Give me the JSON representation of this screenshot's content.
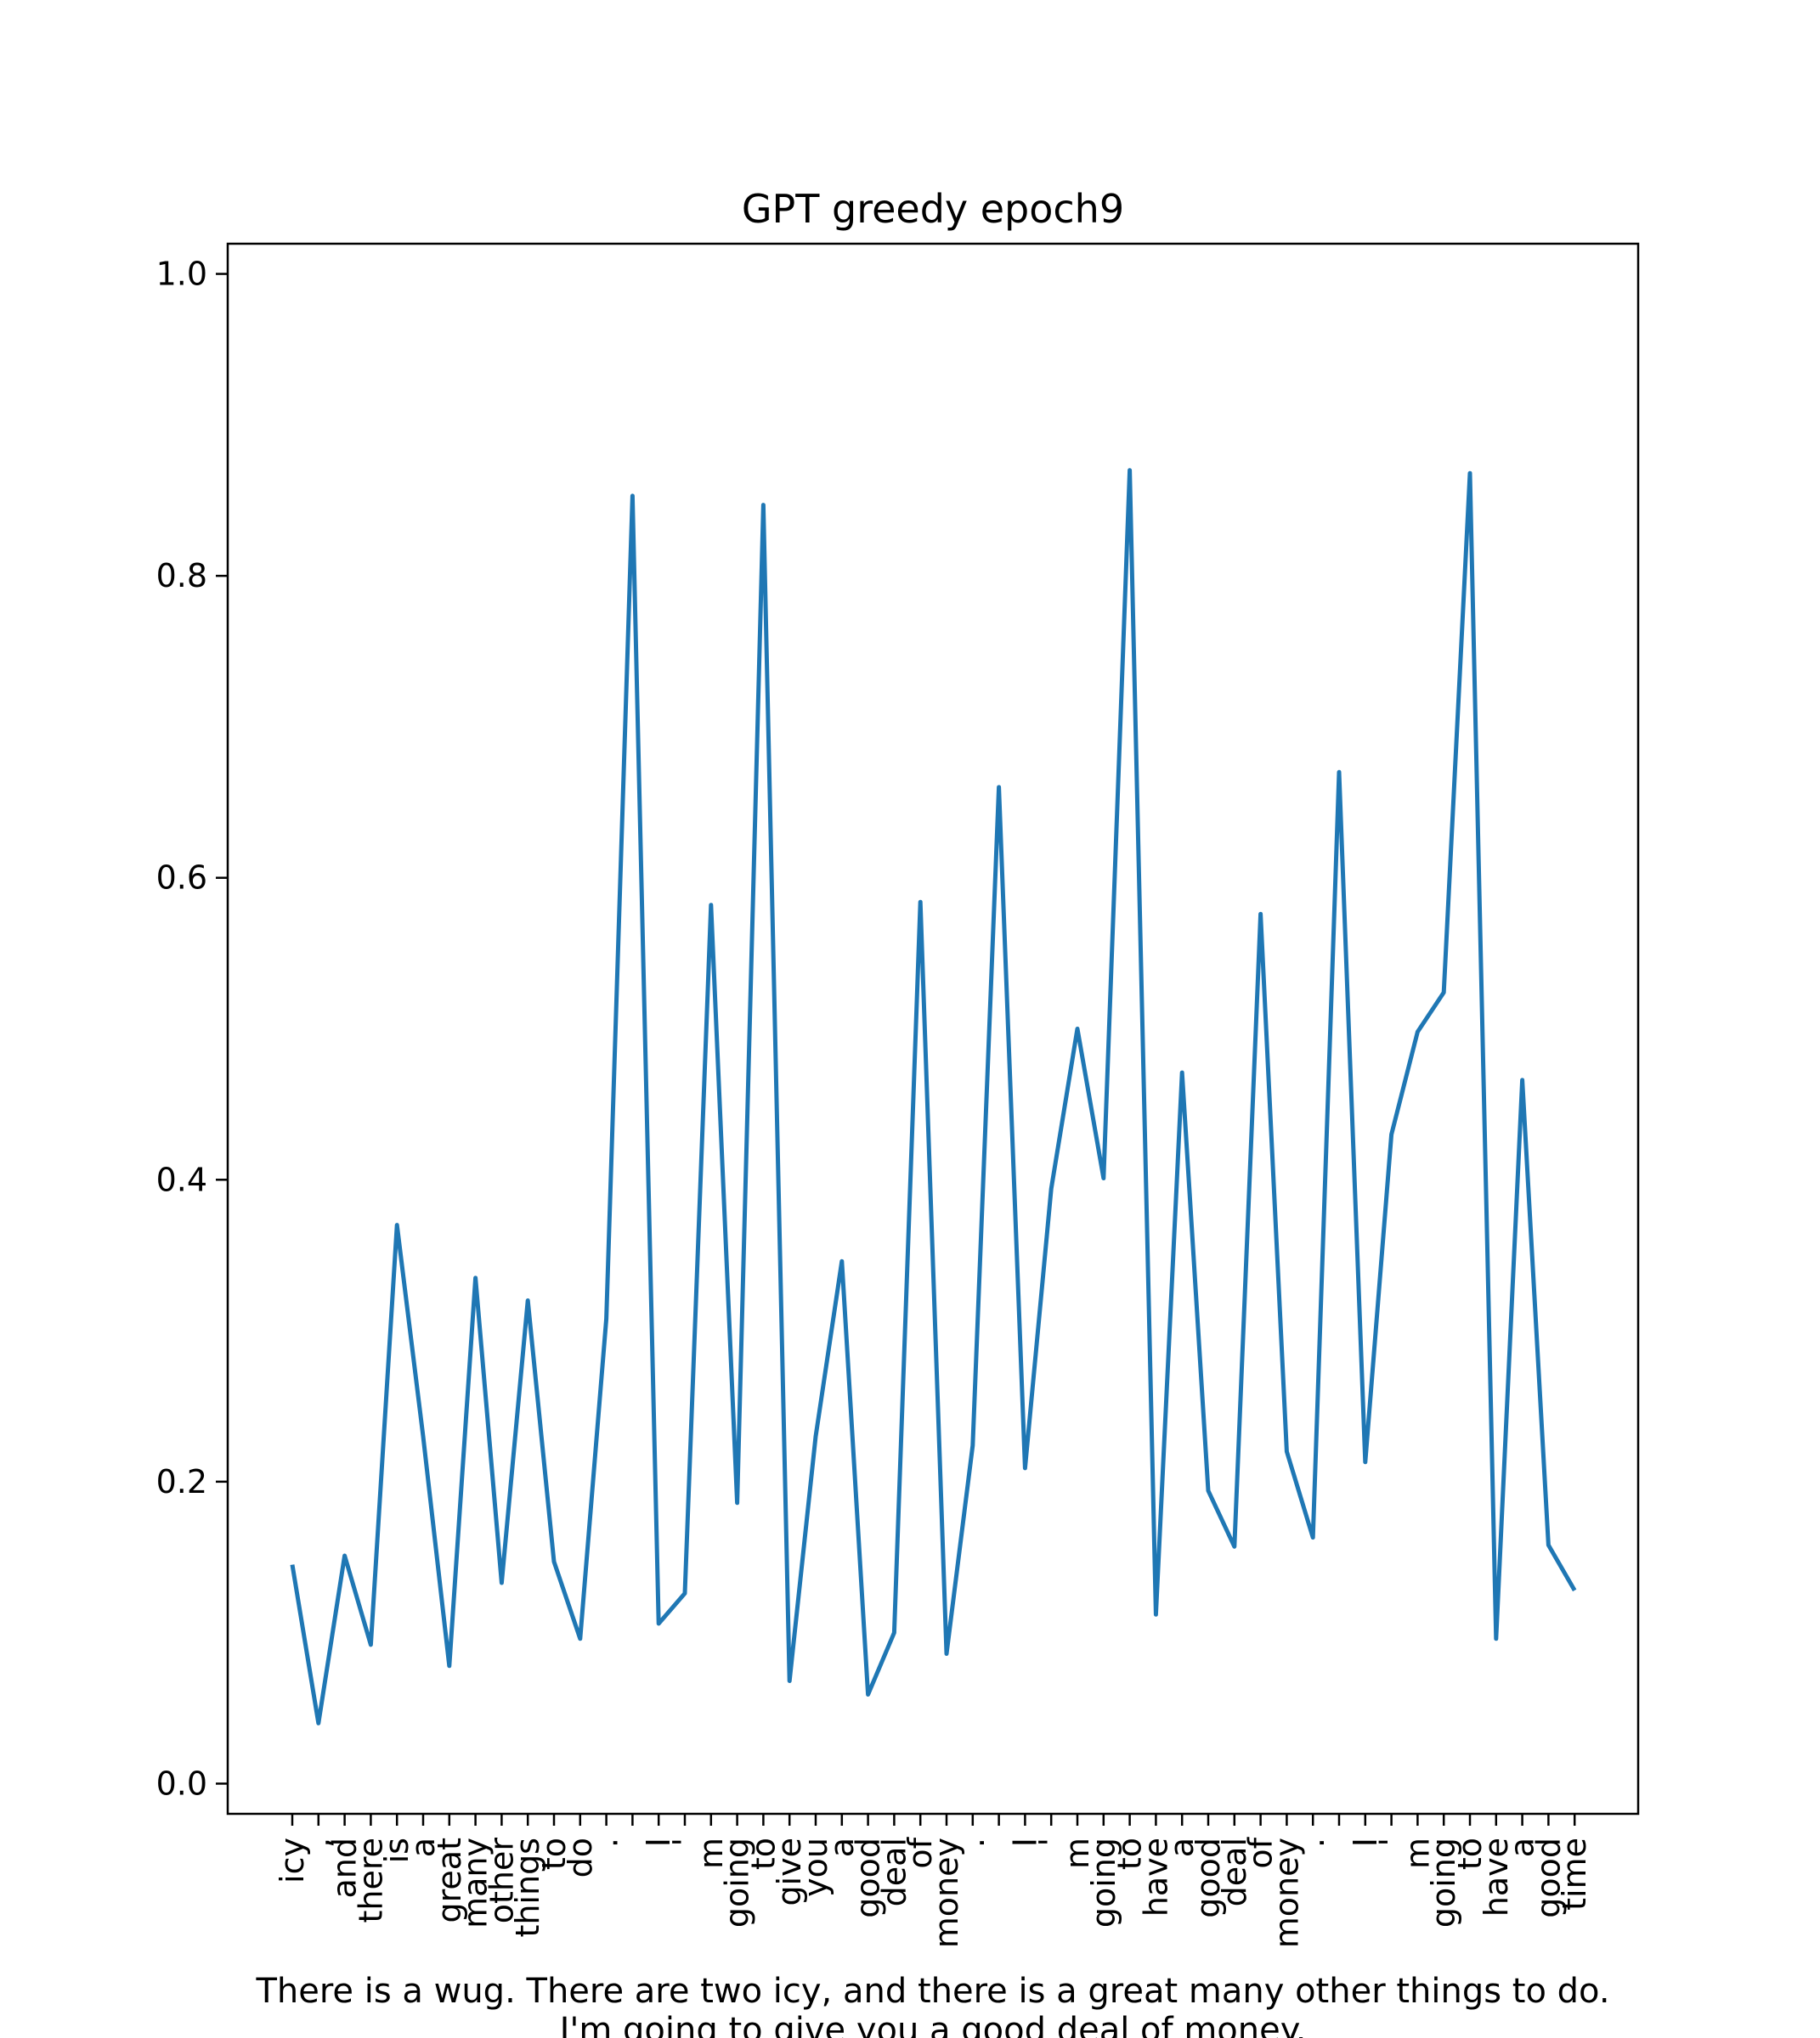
{
  "chart_data": {
    "type": "line",
    "title": "GPT greedy epoch9",
    "xlabel_lines": [
      "There is a wug. There are two icy, and there is a great many other things to do.",
      "I'm going to give you a good deal of money."
    ],
    "ylabel": "",
    "ylim": [
      -0.02,
      1.02
    ],
    "yticks": [
      "0.0",
      "0.2",
      "0.4",
      "0.6",
      "0.8",
      "1.0"
    ],
    "grid": false,
    "color": "#1f77b4",
    "categories": [
      "icy",
      ",",
      "and",
      "there",
      "is",
      "a",
      "great",
      "many",
      "other",
      "things",
      "to",
      "do",
      ".",
      "",
      "I",
      "'",
      "m",
      "going",
      "to",
      "give",
      "you",
      "a",
      "good",
      "deal",
      "of",
      "money",
      ".",
      "",
      "I",
      "'",
      "m",
      "going",
      "to",
      "have",
      "a",
      "good",
      "deal",
      "of",
      "money",
      ".",
      "",
      "I",
      "'",
      "m",
      "going",
      "to",
      "have",
      "a",
      "good",
      "time"
    ],
    "values": [
      0.145,
      0.04,
      0.151,
      0.092,
      0.37,
      0.23,
      0.078,
      0.335,
      0.133,
      0.32,
      0.147,
      0.096,
      0.308,
      0.853,
      0.106,
      0.126,
      0.582,
      0.186,
      0.847,
      0.068,
      0.23,
      0.346,
      0.059,
      0.1,
      0.584,
      0.086,
      0.224,
      0.66,
      0.209,
      0.394,
      0.5,
      0.401,
      0.87,
      0.112,
      0.471,
      0.194,
      0.157,
      0.576,
      0.22,
      0.163,
      0.67,
      0.213,
      0.43,
      0.498,
      0.524,
      0.868,
      0.096,
      0.466,
      0.158,
      0.128
    ]
  }
}
